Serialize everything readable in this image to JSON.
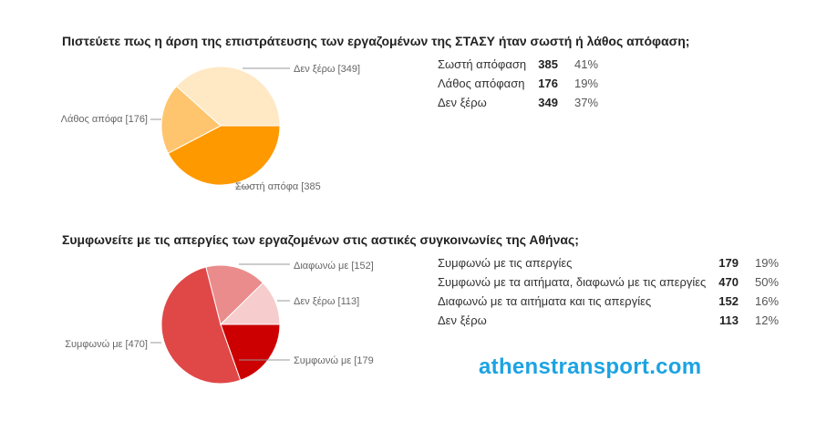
{
  "chart_data": [
    {
      "type": "pie",
      "title": "Πιστεύετε πως η άρση της επιστράτευσης των εργαζομένων της ΣΤΑΣΥ ήταν σωστή ή λάθος απόφαση;",
      "pie_labels": [
        "Σωστή απόφα [385",
        "Λάθος απόφα [176]",
        "Δεν ξέρω [349]"
      ],
      "slices": [
        {
          "label": "Σωστή απόφαση",
          "value": 385,
          "percent": "41%",
          "color": "#ff9900"
        },
        {
          "label": "Λάθος απόφαση",
          "value": 176,
          "percent": "19%",
          "color": "#ffc56e"
        },
        {
          "label": "Δεν ξέρω",
          "value": 349,
          "percent": "37%",
          "color": "#ffe8c4"
        }
      ]
    },
    {
      "type": "pie",
      "title": "Συμφωνείτε με τις απεργίες των εργαζομένων στις αστικές συγκοινωνίες της Αθήνας;",
      "pie_labels": [
        "Συμφωνώ με [179",
        "Συμφωνώ με [470]",
        "Διαφωνώ με [152]",
        "Δεν ξέρω [113]"
      ],
      "slices": [
        {
          "label": "Συμφωνώ με τις απεργίες",
          "value": 179,
          "percent": "19%",
          "color": "#cc0000"
        },
        {
          "label": "Συμφωνώ με τα αιτήματα, διαφωνώ με τις απεργίες",
          "value": 470,
          "percent": "50%",
          "color": "#e04747"
        },
        {
          "label": "Διαφωνώ με τα αιτήματα και τις απεργίες",
          "value": 152,
          "percent": "16%",
          "color": "#ea8c8c"
        },
        {
          "label": "Δεν ξέρω",
          "value": 113,
          "percent": "12%",
          "color": "#f6cccc"
        }
      ]
    }
  ],
  "watermark": "athenstransport.com"
}
